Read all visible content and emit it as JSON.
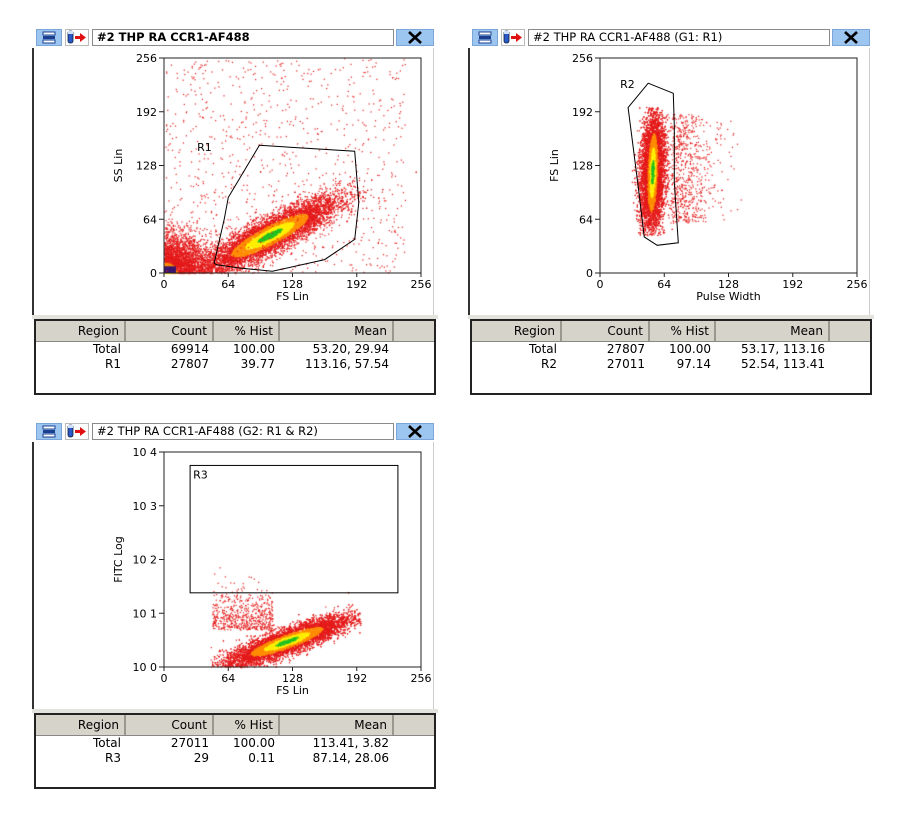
{
  "windows": [
    {
      "title": "#2 THP RA CCR1-AF488",
      "title_bold": true,
      "chart_data": {
        "type": "scatter",
        "style": "density dot plot",
        "xlabel": "FS Lin",
        "ylabel": "SS Lin",
        "xlim": [
          0,
          256
        ],
        "ylim": [
          0,
          256
        ],
        "x_ticks": [
          "0",
          "64",
          "128",
          "192",
          "256"
        ],
        "y_ticks": [
          "0",
          "64",
          "128",
          "192",
          "256"
        ],
        "gate": {
          "name": "R1",
          "shape": "polygon",
          "vertices": [
            [
              50,
              12
            ],
            [
              60,
              64
            ],
            [
              64,
              90
            ],
            [
              95,
              152
            ],
            [
              190,
              145
            ],
            [
              194,
              84
            ],
            [
              190,
              40
            ],
            [
              160,
              16
            ],
            [
              108,
              2
            ],
            [
              75,
              6
            ],
            [
              52,
              10
            ]
          ]
        },
        "population": {
          "center": [
            105,
            45
          ],
          "spread_dir": [
            1.0,
            0.55
          ],
          "extra": "debris near origin, sparse upper scatter"
        }
      },
      "table": {
        "headers": [
          "Region",
          "Count",
          "% Hist",
          "Mean"
        ],
        "rows": [
          [
            "Total",
            "69914",
            "100.00",
            "53.20, 29.94"
          ],
          [
            "R1",
            "27807",
            "39.77",
            "113.16, 57.54"
          ]
        ]
      }
    },
    {
      "title": "#2 THP RA CCR1-AF488  (G1: R1)",
      "title_bold": false,
      "chart_data": {
        "type": "scatter",
        "style": "density dot plot",
        "xlabel": "Pulse Width",
        "ylabel": "FS Lin",
        "xlim": [
          0,
          256
        ],
        "ylim": [
          0,
          256
        ],
        "x_ticks": [
          "0",
          "64",
          "128",
          "192",
          "256"
        ],
        "y_ticks": [
          "0",
          "64",
          "128",
          "192",
          "256"
        ],
        "gate": {
          "name": "R2",
          "shape": "polygon",
          "vertices": [
            [
              28,
              197
            ],
            [
              48,
              226
            ],
            [
              73,
              214
            ],
            [
              74,
              175
            ],
            [
              74,
              108
            ],
            [
              78,
              36
            ],
            [
              57,
              33
            ],
            [
              44,
              43
            ],
            [
              38,
              104
            ],
            [
              28,
              197
            ]
          ]
        },
        "population": {
          "center": [
            52,
            120
          ],
          "spread_dir": [
            0.05,
            1.0
          ]
        }
      },
      "table": {
        "headers": [
          "Region",
          "Count",
          "% Hist",
          "Mean"
        ],
        "rows": [
          [
            "Total",
            "27807",
            "100.00",
            "53.17, 113.16"
          ],
          [
            "R2",
            "27011",
            "97.14",
            "52.54, 113.41"
          ]
        ]
      }
    },
    {
      "title": "#2 THP RA CCR1-AF488  (G2: R1 & R2)",
      "title_bold": false,
      "chart_data": {
        "type": "scatter",
        "style": "density dot plot",
        "xlabel": "FS Lin",
        "ylabel": "FITC Log",
        "xlim": [
          0,
          256
        ],
        "ylim_log10": [
          0,
          4
        ],
        "x_ticks": [
          "0",
          "64",
          "128",
          "192",
          "256"
        ],
        "y_ticks": [
          "10 0",
          "10 1",
          "10 2",
          "10 3",
          "10 4"
        ],
        "gate": {
          "name": "R3",
          "shape": "rectangle",
          "x_range": [
            26,
            233
          ],
          "y_range_log10": [
            1.38,
            3.75
          ]
        },
        "population": {
          "center": [
            128,
            0.45
          ],
          "spread_dir": [
            1.0,
            0.006
          ]
        }
      },
      "table": {
        "headers": [
          "Region",
          "Count",
          "% Hist",
          "Mean"
        ],
        "rows": [
          [
            "Total",
            "27011",
            "100.00",
            "113.41, 3.82"
          ],
          [
            "R3",
            "29",
            "0.11",
            "87.14, 28.06"
          ]
        ]
      }
    }
  ],
  "icons": {
    "stats": "stats-window-icon",
    "tube": "tube-arrow-icon",
    "close": "close-icon"
  },
  "colors": {
    "titlebar_button": "#9cc5f0",
    "density_low": "#e41a1a",
    "density_mid": "#ff8c00",
    "density_high": "#ffee00",
    "density_peak": "#22c022",
    "gate_line": "#000000",
    "table_header": "#d6d3ca"
  }
}
